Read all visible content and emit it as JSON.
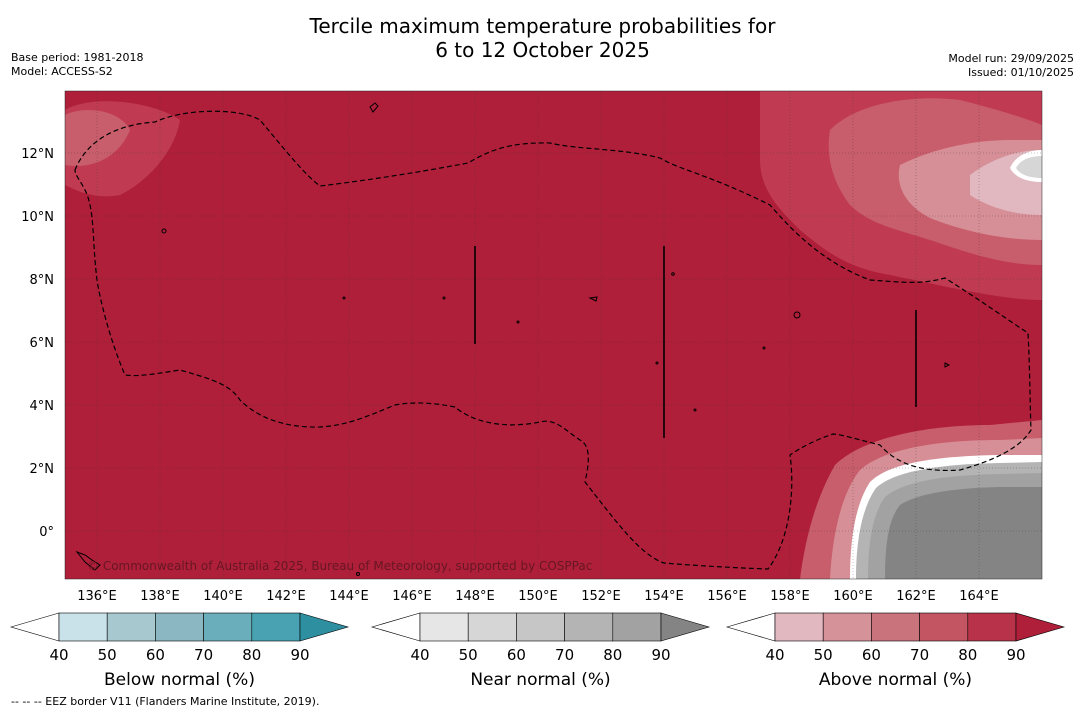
{
  "header": {
    "title_line1": "Tercile maximum temperature probabilities for",
    "title_line2": "6 to 12 October 2025",
    "base_period": "Base period: 1981-2018",
    "model": "Model: ACCESS-S2",
    "model_run": "Model run: 29/09/2025",
    "issued": "Issued: 01/10/2025"
  },
  "map": {
    "lat_labels": [
      "12°N",
      "10°N",
      "8°N",
      "6°N",
      "4°N",
      "2°N",
      "0°"
    ],
    "lon_labels": [
      "136°E",
      "138°E",
      "140°E",
      "142°E",
      "144°E",
      "146°E",
      "148°E",
      "150°E",
      "152°E",
      "154°E",
      "156°E",
      "158°E",
      "160°E",
      "162°E",
      "164°E"
    ],
    "copyright": "© Commonwealth of Australia 2025, Bureau of Meteorology, supported by COSPPac",
    "dominant_category": "Above normal 90%+"
  },
  "colorbars": [
    {
      "title": "Below normal (%)",
      "ticks": [
        "40",
        "50",
        "60",
        "70",
        "80",
        "90"
      ],
      "colors": [
        "#ffffff",
        "#c9e2ea",
        "#a8c8cf",
        "#8bb7c2",
        "#6aaebb",
        "#48a2b1",
        "#2e8fa1"
      ]
    },
    {
      "title": "Near normal (%)",
      "ticks": [
        "40",
        "50",
        "60",
        "70",
        "80",
        "90"
      ],
      "colors": [
        "#ffffff",
        "#e6e6e6",
        "#d6d6d6",
        "#c6c6c6",
        "#b4b4b4",
        "#a2a2a2",
        "#848484"
      ]
    },
    {
      "title": "Above normal (%)",
      "ticks": [
        "40",
        "50",
        "60",
        "70",
        "80",
        "90"
      ],
      "colors": [
        "#ffffff",
        "#e1b8c0",
        "#d69299",
        "#c9737d",
        "#c35563",
        "#b8334a",
        "#b01f3a"
      ]
    }
  ],
  "colors": {
    "above_90": "#b01f3a",
    "above_80": "#c03b52",
    "above_70": "#c85d6b",
    "above_60": "#d78f97",
    "near_90": "#848484",
    "near_80": "#a2a2a2",
    "near_70": "#b4b4b4",
    "near_60": "#d6d6d6"
  },
  "footnote": "-- -- -- EEZ border V11 (Flanders Marine Institute, 2019)."
}
